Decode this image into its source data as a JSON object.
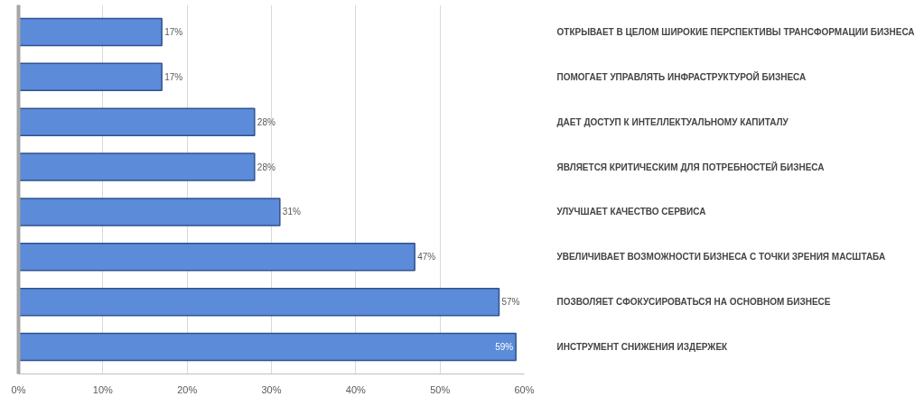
{
  "chart_data": {
    "type": "bar",
    "orientation": "horizontal",
    "categories": [
      "ОТКРЫВАЕТ В ЦЕЛОМ ШИРОКИЕ ПЕРСПЕКТИВЫ ТРАНСФОРМАЦИИ БИЗНЕСА",
      "ПОМОГАЕТ УПРАВЛЯТЬ ИНФРАСТРУКТУРОЙ БИЗНЕСА",
      "ДАЕТ ДОСТУП К ИНТЕЛЛЕКТУАЛЬНОМУ КАПИТАЛУ",
      "ЯВЛЯЕТСЯ КРИТИЧЕСКИМ ДЛЯ ПОТРЕБНОСТЕЙ БИЗНЕСА",
      "УЛУЧШАЕТ КАЧЕСТВО СЕРВИСА",
      "УВЕЛИЧИВАЕТ ВОЗМОЖНОСТИ БИЗНЕСА С ТОЧКИ ЗРЕНИЯ МАСШТАБА",
      "ПОЗВОЛЯЕТ СФОКУСИРОВАТЬСЯ НА ОСНОВНОМ БИЗНЕСЕ",
      "ИНСТРУМЕНТ СНИЖЕНИЯ ИЗДЕРЖЕК"
    ],
    "values": [
      17,
      17,
      28,
      28,
      31,
      47,
      57,
      59
    ],
    "value_labels": [
      "17%",
      "17%",
      "28%",
      "28%",
      "31%",
      "47%",
      "57%",
      "59%"
    ],
    "color": "#5b8bd9",
    "xlim": [
      0,
      60
    ],
    "xticks": [
      {
        "value": 0,
        "label": "0%"
      },
      {
        "value": 10,
        "label": "10%"
      },
      {
        "value": 20,
        "label": "20%"
      },
      {
        "value": 30,
        "label": "30%"
      },
      {
        "value": 40,
        "label": "40%"
      },
      {
        "value": 50,
        "label": "50%"
      },
      {
        "value": 60,
        "label": "60%"
      }
    ],
    "grid": "x"
  }
}
